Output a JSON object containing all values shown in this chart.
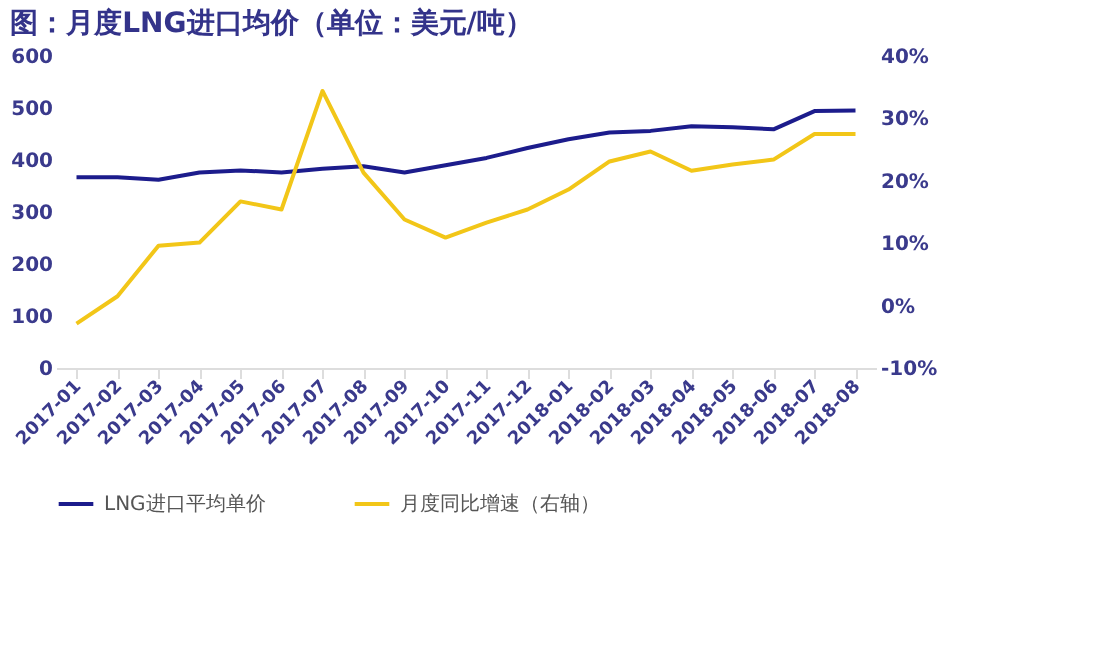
{
  "chart_data": {
    "type": "line",
    "title": "图：月度LNG进口均价（单位：美元/吨）",
    "categories": [
      "2017-01",
      "2017-02",
      "2017-03",
      "2017-04",
      "2017-05",
      "2017-06",
      "2017-07",
      "2017-08",
      "2017-09",
      "2017-10",
      "2017-11",
      "2017-12",
      "2018-01",
      "2018-02",
      "2018-03",
      "2018-04",
      "2018-05",
      "2018-06",
      "2018-07",
      "2018-08"
    ],
    "series": [
      {
        "name": "LNG进口平均单价",
        "color": "#1c1c8c",
        "values": [
          367,
          367,
          362,
          376,
          380,
          376,
          383,
          388,
          376,
          390,
          404,
          423,
          440,
          453,
          456,
          465,
          463,
          459,
          494,
          495
        ]
      },
      {
        "name": "月度同比增速（右轴）",
        "color": "#f2c618",
        "axis": "y2",
        "values": [
          -2.9,
          1.5,
          9.6,
          10.1,
          16.7,
          15.4,
          34.4,
          21.3,
          13.8,
          10.9,
          13.3,
          15.4,
          18.6,
          23.1,
          24.7,
          21.6,
          22.6,
          23.4,
          27.5,
          27.5
        ]
      }
    ],
    "ylim": [
      0,
      600
    ],
    "yticks": [
      0,
      100,
      200,
      300,
      400,
      500,
      600
    ],
    "y2lim": [
      -10,
      40
    ],
    "y2ticks": [
      {
        "value": -10,
        "label": "-10%"
      },
      {
        "value": 0,
        "label": "0%"
      },
      {
        "value": 10,
        "label": "10%"
      },
      {
        "value": 20,
        "label": "20%"
      },
      {
        "value": 30,
        "label": "30%"
      },
      {
        "value": 40,
        "label": "40%"
      }
    ],
    "grid": false,
    "legend": "bottom",
    "marker": "none",
    "line_style": "solid"
  }
}
